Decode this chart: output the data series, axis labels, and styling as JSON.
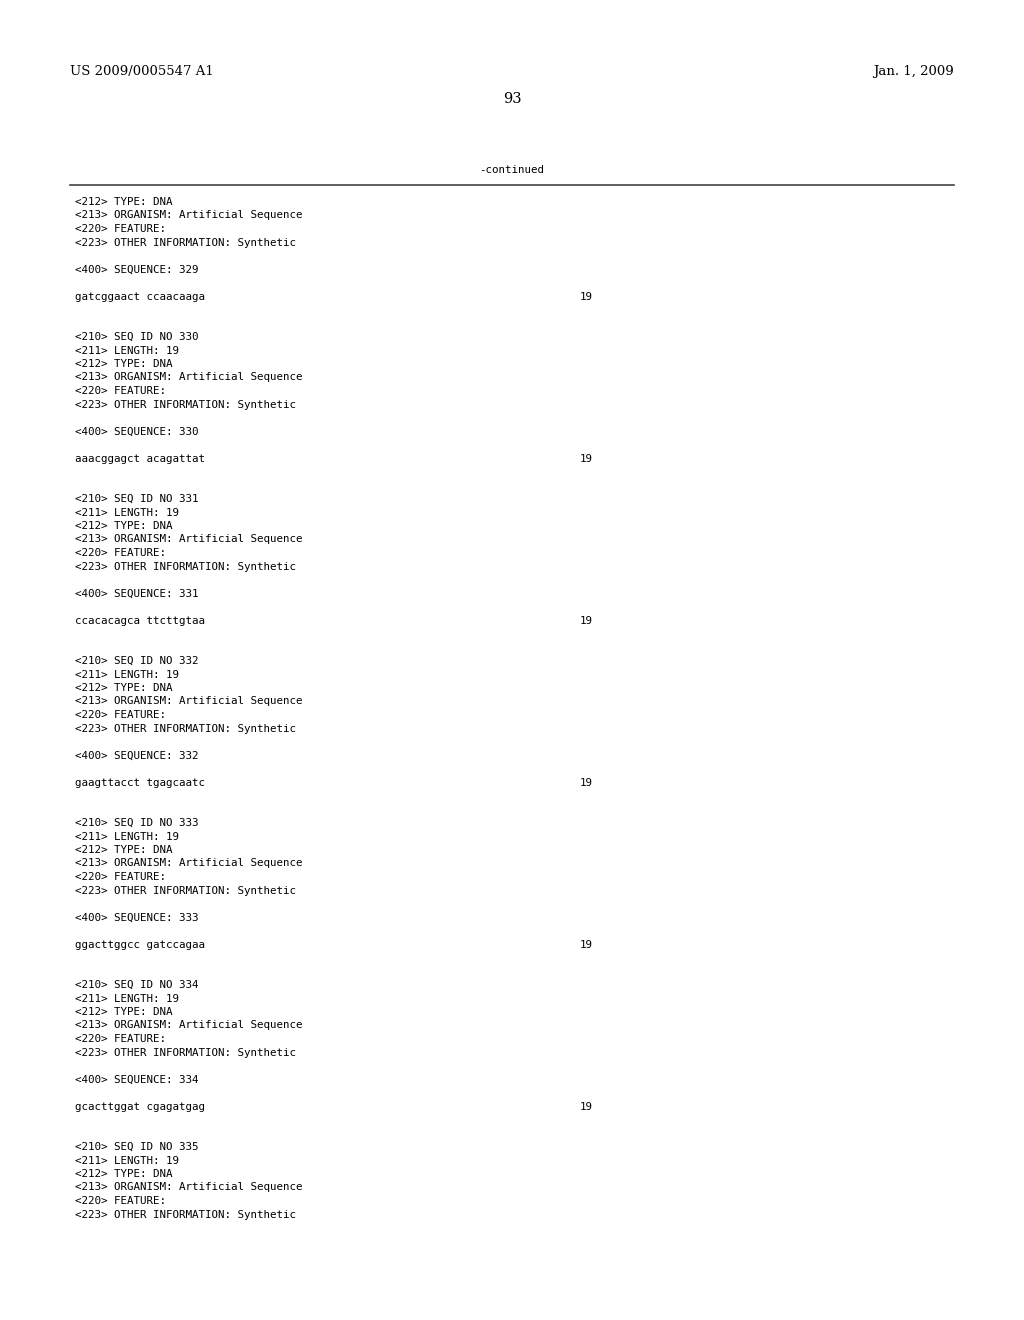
{
  "header_left": "US 2009/0005547 A1",
  "header_right": "Jan. 1, 2009",
  "page_number": "93",
  "continued_label": "-continued",
  "bg_color": "#ffffff",
  "text_color": "#000000",
  "font_size_header": 9.5,
  "font_size_body": 7.8,
  "font_size_page": 10.5,
  "lines": [
    "<212> TYPE: DNA",
    "<213> ORGANISM: Artificial Sequence",
    "<220> FEATURE:",
    "<223> OTHER INFORMATION: Synthetic",
    "",
    "<400> SEQUENCE: 329",
    "",
    "gatcggaact ccaacaaga",
    "",
    "",
    "<210> SEQ ID NO 330",
    "<211> LENGTH: 19",
    "<212> TYPE: DNA",
    "<213> ORGANISM: Artificial Sequence",
    "<220> FEATURE:",
    "<223> OTHER INFORMATION: Synthetic",
    "",
    "<400> SEQUENCE: 330",
    "",
    "aaacggagct acagattat",
    "",
    "",
    "<210> SEQ ID NO 331",
    "<211> LENGTH: 19",
    "<212> TYPE: DNA",
    "<213> ORGANISM: Artificial Sequence",
    "<220> FEATURE:",
    "<223> OTHER INFORMATION: Synthetic",
    "",
    "<400> SEQUENCE: 331",
    "",
    "ccacacagca ttcttgtaa",
    "",
    "",
    "<210> SEQ ID NO 332",
    "<211> LENGTH: 19",
    "<212> TYPE: DNA",
    "<213> ORGANISM: Artificial Sequence",
    "<220> FEATURE:",
    "<223> OTHER INFORMATION: Synthetic",
    "",
    "<400> SEQUENCE: 332",
    "",
    "gaagttacct tgagcaatc",
    "",
    "",
    "<210> SEQ ID NO 333",
    "<211> LENGTH: 19",
    "<212> TYPE: DNA",
    "<213> ORGANISM: Artificial Sequence",
    "<220> FEATURE:",
    "<223> OTHER INFORMATION: Synthetic",
    "",
    "<400> SEQUENCE: 333",
    "",
    "ggacttggcc gatccagaa",
    "",
    "",
    "<210> SEQ ID NO 334",
    "<211> LENGTH: 19",
    "<212> TYPE: DNA",
    "<213> ORGANISM: Artificial Sequence",
    "<220> FEATURE:",
    "<223> OTHER INFORMATION: Synthetic",
    "",
    "<400> SEQUENCE: 334",
    "",
    "gcacttggat cgagatgag",
    "",
    "",
    "<210> SEQ ID NO 335",
    "<211> LENGTH: 19",
    "<212> TYPE: DNA",
    "<213> ORGANISM: Artificial Sequence",
    "<220> FEATURE:",
    "<223> OTHER INFORMATION: Synthetic"
  ],
  "seq_lines": [
    "gatcggaact ccaacaaga",
    "aaacggagct acagattat",
    "ccacacagca ttcttgtaa",
    "gaagttacct tgagcaatc",
    "ggacttggcc gatccagaa",
    "gcacttggat cgagatgag"
  ],
  "seq_number": "19"
}
